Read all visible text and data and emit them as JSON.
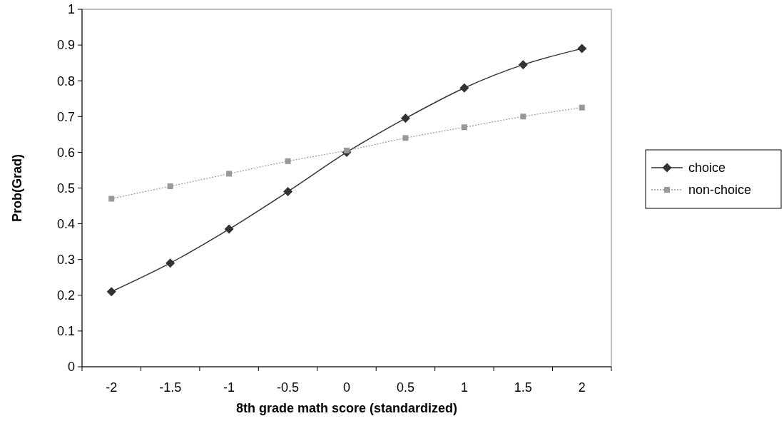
{
  "chart_data": {
    "type": "line",
    "xlabel": "8th grade math score (standardized)",
    "ylabel": "Prob(Grad)",
    "categories": [
      "-2",
      "-1.5",
      "-1",
      "-0.5",
      "0",
      "0.5",
      "1",
      "1.5",
      "2"
    ],
    "ylim": [
      0,
      1
    ],
    "yticks": [
      0,
      0.1,
      0.2,
      0.3,
      0.4,
      0.5,
      0.6,
      0.7,
      0.8,
      0.9,
      1
    ],
    "grid": false,
    "legend": "right",
    "series": [
      {
        "name": "choice",
        "color": "#333333",
        "marker": "diamond",
        "line_style": "solid",
        "values": [
          0.21,
          0.29,
          0.385,
          0.49,
          0.6,
          0.695,
          0.78,
          0.845,
          0.89
        ]
      },
      {
        "name": "non-choice",
        "color": "#999999",
        "marker": "square",
        "line_style": "dotted",
        "values": [
          0.47,
          0.505,
          0.54,
          0.575,
          0.605,
          0.64,
          0.67,
          0.7,
          0.725
        ]
      }
    ]
  }
}
